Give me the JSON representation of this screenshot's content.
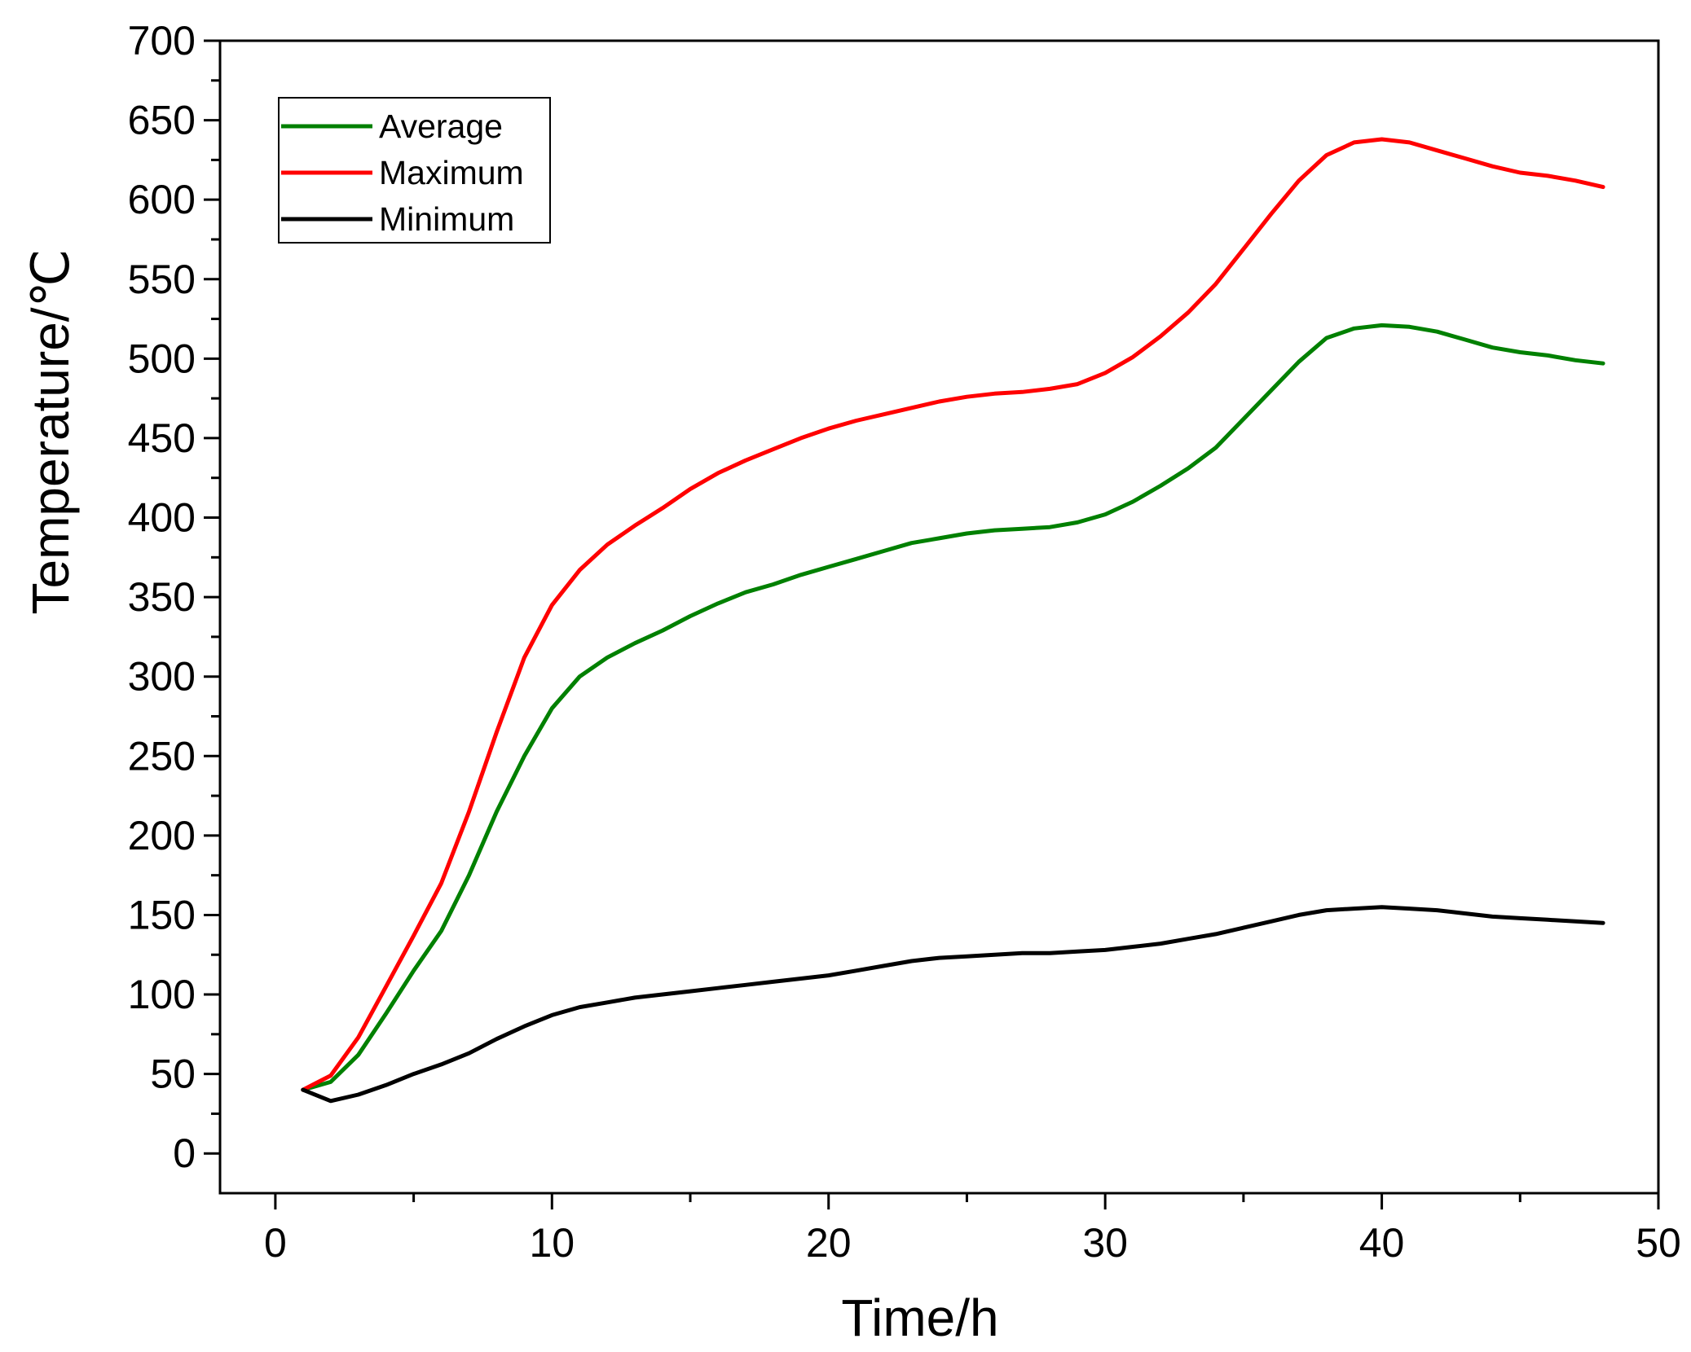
{
  "chart_data": {
    "type": "line",
    "title": "",
    "xlabel": "Time/h",
    "ylabel": "Temperature/℃",
    "xlim": [
      -2,
      50
    ],
    "ylim": [
      -25,
      700
    ],
    "xticks": [
      0,
      10,
      20,
      30,
      40,
      50
    ],
    "yticks": [
      0,
      50,
      100,
      150,
      200,
      250,
      300,
      350,
      400,
      450,
      500,
      550,
      600,
      650,
      700
    ],
    "grid": false,
    "legend_position": "top-left",
    "x": [
      1,
      2,
      3,
      4,
      5,
      6,
      7,
      8,
      9,
      10,
      11,
      12,
      13,
      14,
      15,
      16,
      17,
      18,
      19,
      20,
      21,
      22,
      23,
      24,
      25,
      26,
      27,
      28,
      29,
      30,
      31,
      32,
      33,
      34,
      35,
      36,
      37,
      38,
      39,
      40,
      41,
      42,
      43,
      44,
      45,
      46,
      47,
      48
    ],
    "series": [
      {
        "name": "Average",
        "color": "#008000",
        "values": [
          40,
          45,
          62,
          88,
          115,
          140,
          175,
          215,
          250,
          280,
          300,
          312,
          321,
          329,
          338,
          346,
          353,
          358,
          364,
          369,
          374,
          379,
          384,
          387,
          390,
          392,
          393,
          394,
          397,
          402,
          410,
          420,
          431,
          444,
          462,
          480,
          498,
          513,
          519,
          521,
          520,
          517,
          512,
          507,
          504,
          502,
          499,
          497
        ]
      },
      {
        "name": "Maximum",
        "color": "#ff0000",
        "values": [
          40,
          49,
          73,
          105,
          137,
          170,
          215,
          265,
          312,
          345,
          367,
          383,
          395,
          406,
          418,
          428,
          436,
          443,
          450,
          456,
          461,
          465,
          469,
          473,
          476,
          478,
          479,
          481,
          484,
          491,
          501,
          514,
          529,
          547,
          569,
          591,
          612,
          628,
          636,
          638,
          636,
          631,
          626,
          621,
          617,
          615,
          612,
          608
        ]
      },
      {
        "name": "Minimum",
        "color": "#000000",
        "values": [
          40,
          33,
          37,
          43,
          50,
          56,
          63,
          72,
          80,
          87,
          92,
          95,
          98,
          100,
          102,
          104,
          106,
          108,
          110,
          112,
          115,
          118,
          121,
          123,
          124,
          125,
          126,
          126,
          127,
          128,
          130,
          132,
          135,
          138,
          142,
          146,
          150,
          153,
          154,
          155,
          154,
          153,
          151,
          149,
          148,
          147,
          146,
          145
        ]
      }
    ]
  }
}
